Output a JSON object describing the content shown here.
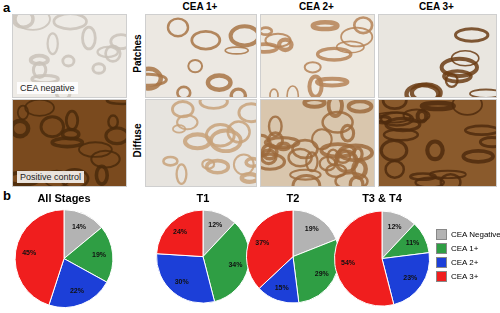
{
  "panel_a": {
    "label": "a",
    "controls": [
      "CEA negative",
      "Positive control"
    ],
    "columns": [
      "CEA 1+",
      "CEA 2+",
      "CEA 3+"
    ],
    "rows": [
      "Patches",
      "Diffuse"
    ]
  },
  "panel_b": {
    "label": "b"
  },
  "chart_data": [
    {
      "type": "pie",
      "title": "All Stages",
      "categories": [
        "CEA Negative",
        "CEA 1+",
        "CEA 2+",
        "CEA 3+"
      ],
      "values": [
        14,
        19,
        22,
        45
      ],
      "value_labels": [
        "14%",
        "19%",
        "22%",
        "45%"
      ],
      "colors": [
        "#b3b3b3",
        "#2f9e44",
        "#1c3fd8",
        "#f01e1e"
      ],
      "data_labels": true
    },
    {
      "type": "pie",
      "title": "T1",
      "categories": [
        "CEA Negative",
        "CEA 1+",
        "CEA 2+",
        "CEA 3+"
      ],
      "values": [
        12,
        34,
        30,
        24
      ],
      "value_labels": [
        "12%",
        "34%",
        "30%",
        "24%"
      ],
      "colors": [
        "#b3b3b3",
        "#2f9e44",
        "#1c3fd8",
        "#f01e1e"
      ],
      "data_labels": true
    },
    {
      "type": "pie",
      "title": "T2",
      "categories": [
        "CEA Negative",
        "CEA 1+",
        "CEA 2+",
        "CEA 3+"
      ],
      "values": [
        19,
        29,
        15,
        37
      ],
      "value_labels": [
        "19%",
        "29%",
        "15%",
        "37%"
      ],
      "colors": [
        "#b3b3b3",
        "#2f9e44",
        "#1c3fd8",
        "#f01e1e"
      ],
      "data_labels": true
    },
    {
      "type": "pie",
      "title": "T3 & T4",
      "categories": [
        "CEA Negative",
        "CEA 1+",
        "CEA 2+",
        "CEA 3+"
      ],
      "values": [
        12,
        11,
        23,
        54
      ],
      "value_labels": [
        "12%",
        "11%",
        "23%",
        "54%"
      ],
      "colors": [
        "#b3b3b3",
        "#2f9e44",
        "#1c3fd8",
        "#f01e1e"
      ],
      "data_labels": true,
      "legend": "right"
    }
  ]
}
